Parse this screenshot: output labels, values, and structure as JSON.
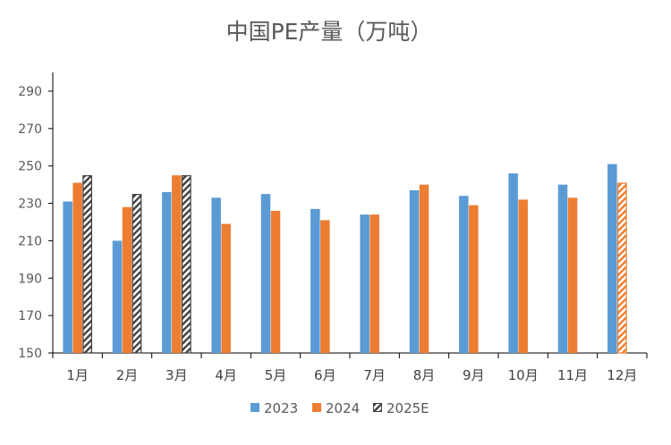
{
  "chart_data": {
    "type": "bar",
    "title": "中国PE产量（万吨）",
    "xlabel": "",
    "ylabel": "",
    "ylim": [
      150,
      290
    ],
    "yticks": [
      150,
      170,
      190,
      210,
      230,
      250,
      270,
      290
    ],
    "categories": [
      "1月",
      "2月",
      "3月",
      "4月",
      "5月",
      "6月",
      "7月",
      "8月",
      "9月",
      "10月",
      "11月",
      "12月"
    ],
    "series": [
      {
        "name": "2023",
        "color": "#5B9BD5",
        "pattern": "solid",
        "values": [
          231,
          210,
          236,
          233,
          235,
          227,
          224,
          237,
          234,
          246,
          240,
          251
        ]
      },
      {
        "name": "2024",
        "color": "#ED7D31",
        "pattern": "solid",
        "values": [
          241,
          228,
          245,
          219,
          226,
          221,
          224,
          240,
          229,
          232,
          233,
          241
        ]
      },
      {
        "name": "2025E",
        "color": "#404040",
        "pattern": "hatched",
        "values": [
          245,
          235,
          245,
          null,
          null,
          null,
          null,
          null,
          null,
          null,
          null,
          null
        ]
      }
    ],
    "special_bars": [
      {
        "category": "12月",
        "series": "2024",
        "style": "hatched-orange"
      }
    ],
    "legend_position": "bottom",
    "grid": false
  }
}
